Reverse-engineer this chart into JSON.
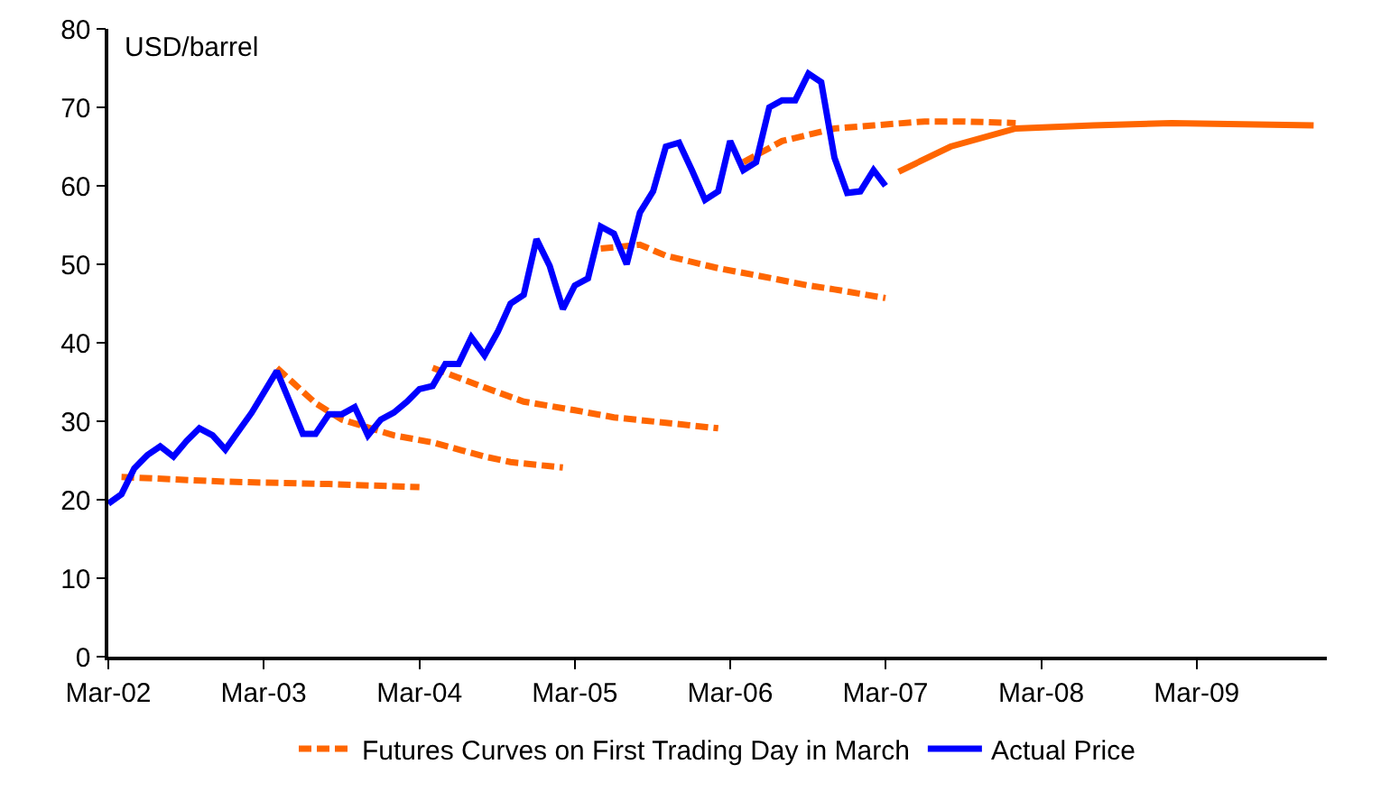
{
  "chart_data": {
    "type": "line",
    "ylabel": "USD/barrel",
    "xlim": [
      "2002-03",
      "2010-01"
    ],
    "ylim": [
      0,
      80
    ],
    "xticks": [
      {
        "value": "2002-03",
        "label": "Mar-02"
      },
      {
        "value": "2003-03",
        "label": "Mar-03"
      },
      {
        "value": "2004-03",
        "label": "Mar-04"
      },
      {
        "value": "2005-03",
        "label": "Mar-05"
      },
      {
        "value": "2006-03",
        "label": "Mar-06"
      },
      {
        "value": "2007-03",
        "label": "Mar-07"
      },
      {
        "value": "2008-03",
        "label": "Mar-08"
      },
      {
        "value": "2009-03",
        "label": "Mar-09"
      }
    ],
    "yticks": [
      0,
      10,
      20,
      30,
      40,
      50,
      60,
      70,
      80
    ],
    "grid": false,
    "legend": "bottom",
    "marker": "none",
    "series": [
      {
        "name": "Futures Curves on First Trading Day in March",
        "color": "#ff6600",
        "line_style": "dashed",
        "x": [
          "2002-04",
          "2002-12",
          "2003-08",
          "2004-03"
        ],
        "values": [
          22.9,
          22.3,
          22.0,
          21.6
        ]
      },
      {
        "color": "#ff6600",
        "line_style": "dashed",
        "x": [
          "2003-04",
          "2003-07",
          "2003-09",
          "2004-01",
          "2004-04",
          "2004-08",
          "2004-10",
          "2005-02"
        ],
        "values": [
          36.8,
          32.3,
          30.2,
          28.2,
          27.3,
          25.5,
          24.8,
          24.1
        ]
      },
      {
        "color": "#ff6600",
        "line_style": "dashed",
        "x": [
          "2004-04",
          "2004-08",
          "2004-11",
          "2005-03",
          "2005-06",
          "2006-02"
        ],
        "values": [
          36.8,
          34.3,
          32.5,
          31.4,
          30.5,
          29.1
        ]
      },
      {
        "color": "#ff6600",
        "line_style": "dashed",
        "x": [
          "2005-05",
          "2005-08",
          "2005-10",
          "2006-02",
          "2006-05",
          "2006-09",
          "2006-11",
          "2007-03"
        ],
        "values": [
          52.0,
          52.5,
          51.1,
          49.5,
          48.6,
          47.3,
          46.8,
          45.7
        ]
      },
      {
        "color": "#ff6600",
        "line_style": "dashed",
        "x": [
          "2006-04",
          "2006-07",
          "2006-11",
          "2007-02",
          "2007-06",
          "2007-09",
          "2008-01"
        ],
        "values": [
          63.0,
          65.7,
          67.3,
          67.7,
          68.2,
          68.2,
          68.0
        ]
      },
      {
        "color": "#ff6600",
        "line_style": "solid",
        "x": [
          "2007-04",
          "2007-08",
          "2008-01",
          "2008-07",
          "2009-01",
          "2009-12"
        ],
        "values": [
          61.8,
          65.0,
          67.3,
          67.7,
          68.0,
          67.7
        ]
      },
      {
        "name": "Actual Price",
        "color": "#0000ff",
        "line_style": "solid",
        "x": [
          "2002-03",
          "2002-04",
          "2002-05",
          "2002-06",
          "2002-07",
          "2002-08",
          "2002-09",
          "2002-10",
          "2002-11",
          "2002-12",
          "2003-02",
          "2003-04",
          "2003-05",
          "2003-06",
          "2003-07",
          "2003-08",
          "2003-09",
          "2003-10",
          "2003-11",
          "2003-12",
          "2004-01",
          "2004-02",
          "2004-03",
          "2004-04",
          "2004-05",
          "2004-06",
          "2004-07",
          "2004-08",
          "2004-09",
          "2004-10",
          "2004-11",
          "2004-12",
          "2005-01",
          "2005-02",
          "2005-03",
          "2005-04",
          "2005-05",
          "2005-06",
          "2005-07",
          "2005-08",
          "2005-09",
          "2005-10",
          "2005-11",
          "2005-12",
          "2006-01",
          "2006-02",
          "2006-03",
          "2006-04",
          "2006-05",
          "2006-06",
          "2006-07",
          "2006-08",
          "2006-09",
          "2006-10",
          "2006-11",
          "2006-12",
          "2007-01",
          "2007-02",
          "2007-03"
        ],
        "values": [
          19.5,
          20.7,
          24,
          25.7,
          26.8,
          25.5,
          27.5,
          29.1,
          28.2,
          26.4,
          31.1,
          36.4,
          32.5,
          28.4,
          28.4,
          30.9,
          30.9,
          31.8,
          28.2,
          30.2,
          31.1,
          32.5,
          34.1,
          34.5,
          37.3,
          37.3,
          40.7,
          38.4,
          41.4,
          45,
          46.1,
          53.2,
          49.8,
          44.3,
          47.3,
          48.2,
          54.8,
          53.9,
          50,
          56.6,
          59.3,
          65,
          65.5,
          62,
          58.2,
          59.3,
          65.7,
          62,
          63,
          70,
          70.9,
          70.9,
          74.3,
          73.2,
          63.6,
          59.1,
          59.3,
          62,
          60
        ]
      }
    ]
  }
}
